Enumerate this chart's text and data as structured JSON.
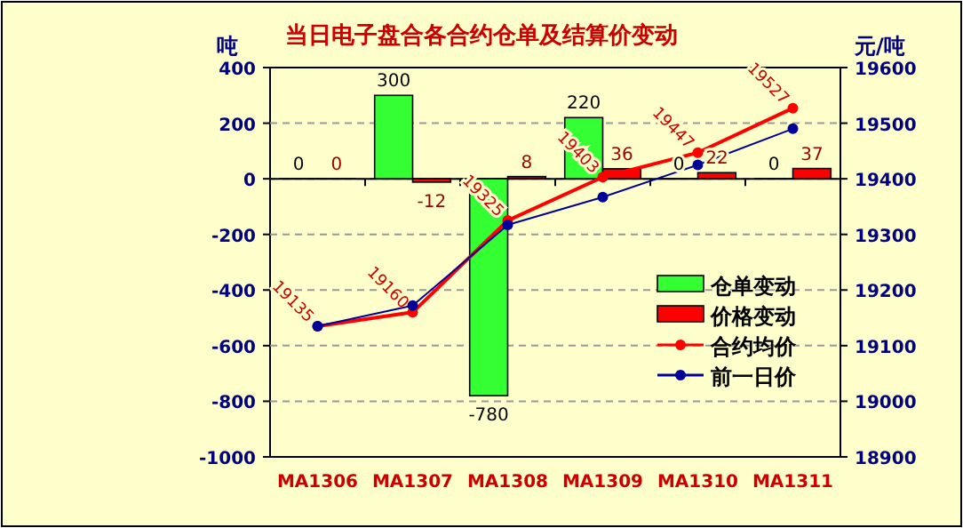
{
  "chart_data": {
    "type": "bar",
    "title": "当日电子盘合各合约仓单及结算价变动",
    "ylabel": "吨",
    "y2label": "元/吨",
    "categories": [
      "MA1306",
      "MA1307",
      "MA1308",
      "MA1309",
      "MA1310",
      "MA1311"
    ],
    "series": [
      {
        "name": "仓单变动",
        "color": "#33ff33",
        "values": [
          0,
          300,
          -780,
          220,
          0,
          0
        ],
        "value_labels": [
          "0",
          "300",
          "-780",
          "220",
          "0",
          "0"
        ]
      },
      {
        "name": "价格变动",
        "color": "#ff0000",
        "values": [
          0,
          -12,
          8,
          36,
          22,
          37
        ],
        "value_labels": [
          "0",
          "-12",
          "8",
          "36",
          "22",
          "37"
        ]
      },
      {
        "name": "合约均价",
        "type": "line",
        "axis": "y2",
        "color": "#ff0000",
        "marker": "circle",
        "values": [
          19135,
          19160,
          19325,
          19403,
          19447,
          19527
        ],
        "value_labels": [
          "19135",
          "19160",
          "19325",
          "19403",
          "19447",
          "19527"
        ]
      },
      {
        "name": "前一日价",
        "type": "line",
        "axis": "y2",
        "color": "#000099",
        "marker": "circle",
        "values": [
          19135,
          19172,
          19317,
          19367,
          19425,
          19490
        ]
      }
    ],
    "ylim": [
      -1000,
      400
    ],
    "yticks": [
      -1000,
      -800,
      -600,
      -400,
      -200,
      0,
      200,
      400
    ],
    "y2lim": [
      18900,
      19600
    ],
    "y2ticks": [
      18900,
      19000,
      19100,
      19200,
      19300,
      19400,
      19500,
      19600
    ],
    "grid": "y",
    "legend": "right"
  }
}
